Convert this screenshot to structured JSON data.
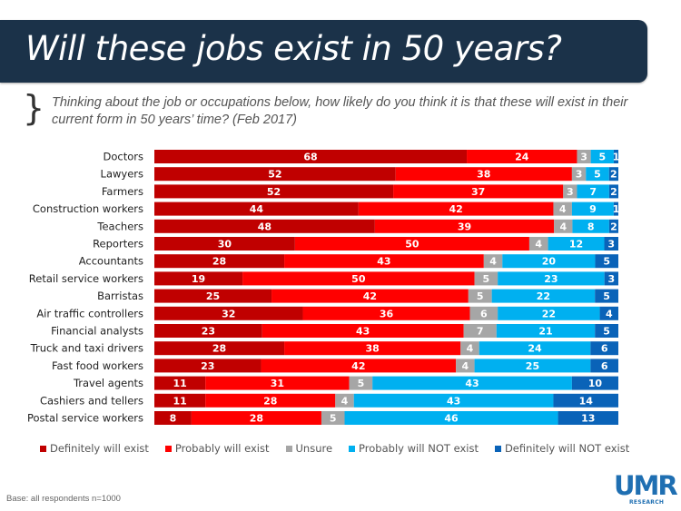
{
  "header": {
    "title": "Will these jobs exist in 50 years?",
    "brace": "}",
    "subtitle": "Thinking about the job or occupations below, how likely do you think it is that these will exist in their current form in 50 years’ time? (Feb 2017)"
  },
  "footer": {
    "base_note": "Base: all respondents n=1000",
    "logo_main": "UMR",
    "logo_sub": "RESEARCH"
  },
  "chart_data": {
    "type": "bar",
    "orientation": "horizontal",
    "stacked": true,
    "title": "Will these jobs exist in 50 years?",
    "xlabel": "",
    "ylabel": "",
    "xlim": [
      0,
      100
    ],
    "grid": false,
    "legend_position": "bottom",
    "categories": [
      "Doctors",
      "Lawyers",
      "Farmers",
      "Construction workers",
      "Teachers",
      "Reporters",
      "Accountants",
      "Retail service workers",
      "Barristas",
      "Air traffic controllers",
      "Financial analysts",
      "Truck and taxi drivers",
      "Fast food workers",
      "Travel agents",
      "Cashiers and tellers",
      "Postal service workers"
    ],
    "series": [
      {
        "name": "Definitely will exist",
        "color": "#c00000",
        "values": [
          68,
          52,
          52,
          44,
          48,
          30,
          28,
          19,
          25,
          32,
          23,
          28,
          23,
          11,
          11,
          8
        ]
      },
      {
        "name": "Probably will exist",
        "color": "#ff0000",
        "values": [
          24,
          38,
          37,
          42,
          39,
          50,
          43,
          50,
          42,
          36,
          43,
          38,
          42,
          31,
          28,
          28
        ]
      },
      {
        "name": "Unsure",
        "color": "#a6a6a6",
        "values": [
          3,
          3,
          3,
          4,
          4,
          4,
          4,
          5,
          5,
          6,
          7,
          4,
          4,
          5,
          4,
          5
        ]
      },
      {
        "name": "Probably will NOT exist",
        "color": "#00b0f0",
        "values": [
          5,
          5,
          7,
          9,
          8,
          12,
          20,
          23,
          22,
          22,
          21,
          24,
          25,
          43,
          43,
          46
        ]
      },
      {
        "name": "Definitely will NOT exist",
        "color": "#0a63b8",
        "values": [
          1,
          2,
          2,
          1,
          2,
          3,
          5,
          3,
          5,
          4,
          5,
          6,
          6,
          10,
          14,
          13
        ]
      }
    ]
  }
}
